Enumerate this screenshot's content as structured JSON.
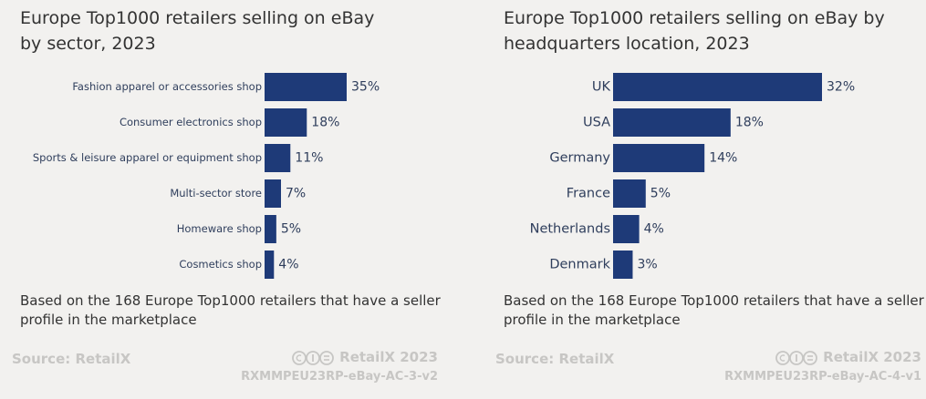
{
  "chart_data": [
    {
      "type": "bar",
      "orientation": "horizontal",
      "title_lines": [
        "Europe Top1000 retailers selling on eBay",
        "by sector, 2023"
      ],
      "categories": [
        "Fashion apparel or accessories shop",
        "Consumer electronics shop",
        "Sports & leisure apparel or equipment shop",
        "Multi-sector store",
        "Homeware shop",
        "Cosmetics shop"
      ],
      "values": [
        35,
        18,
        11,
        7,
        5,
        4
      ],
      "value_labels": [
        "35%",
        "18%",
        "11%",
        "7%",
        "5%",
        "4%"
      ],
      "xlim": [
        0,
        35
      ],
      "note": "Based on the 168 Europe Top1000 retailers that have a seller profile in the marketplace",
      "source": "Source: RetailX",
      "brand": "RetailX 2023",
      "code": "RXMMPEU23RP-eBay-AC-3-v2",
      "bar_color": "#1e3a78"
    },
    {
      "type": "bar",
      "orientation": "horizontal",
      "title_lines": [
        "Europe Top1000 retailers selling on eBay by",
        "headquarters location, 2023"
      ],
      "categories": [
        "UK",
        "USA",
        "Germany",
        "France",
        "Netherlands",
        "Denmark"
      ],
      "values": [
        32,
        18,
        14,
        5,
        4,
        3
      ],
      "value_labels": [
        "32%",
        "18%",
        "14%",
        "5%",
        "4%",
        "3%"
      ],
      "xlim": [
        0,
        32
      ],
      "note": "Based on the 168 Europe Top1000 retailers that have a seller profile in the marketplace",
      "source": "Source: RetailX",
      "brand": "RetailX 2023",
      "code": "RXMMPEU23RP-eBay-AC-4-v1",
      "bar_color": "#1e3a78"
    }
  ]
}
